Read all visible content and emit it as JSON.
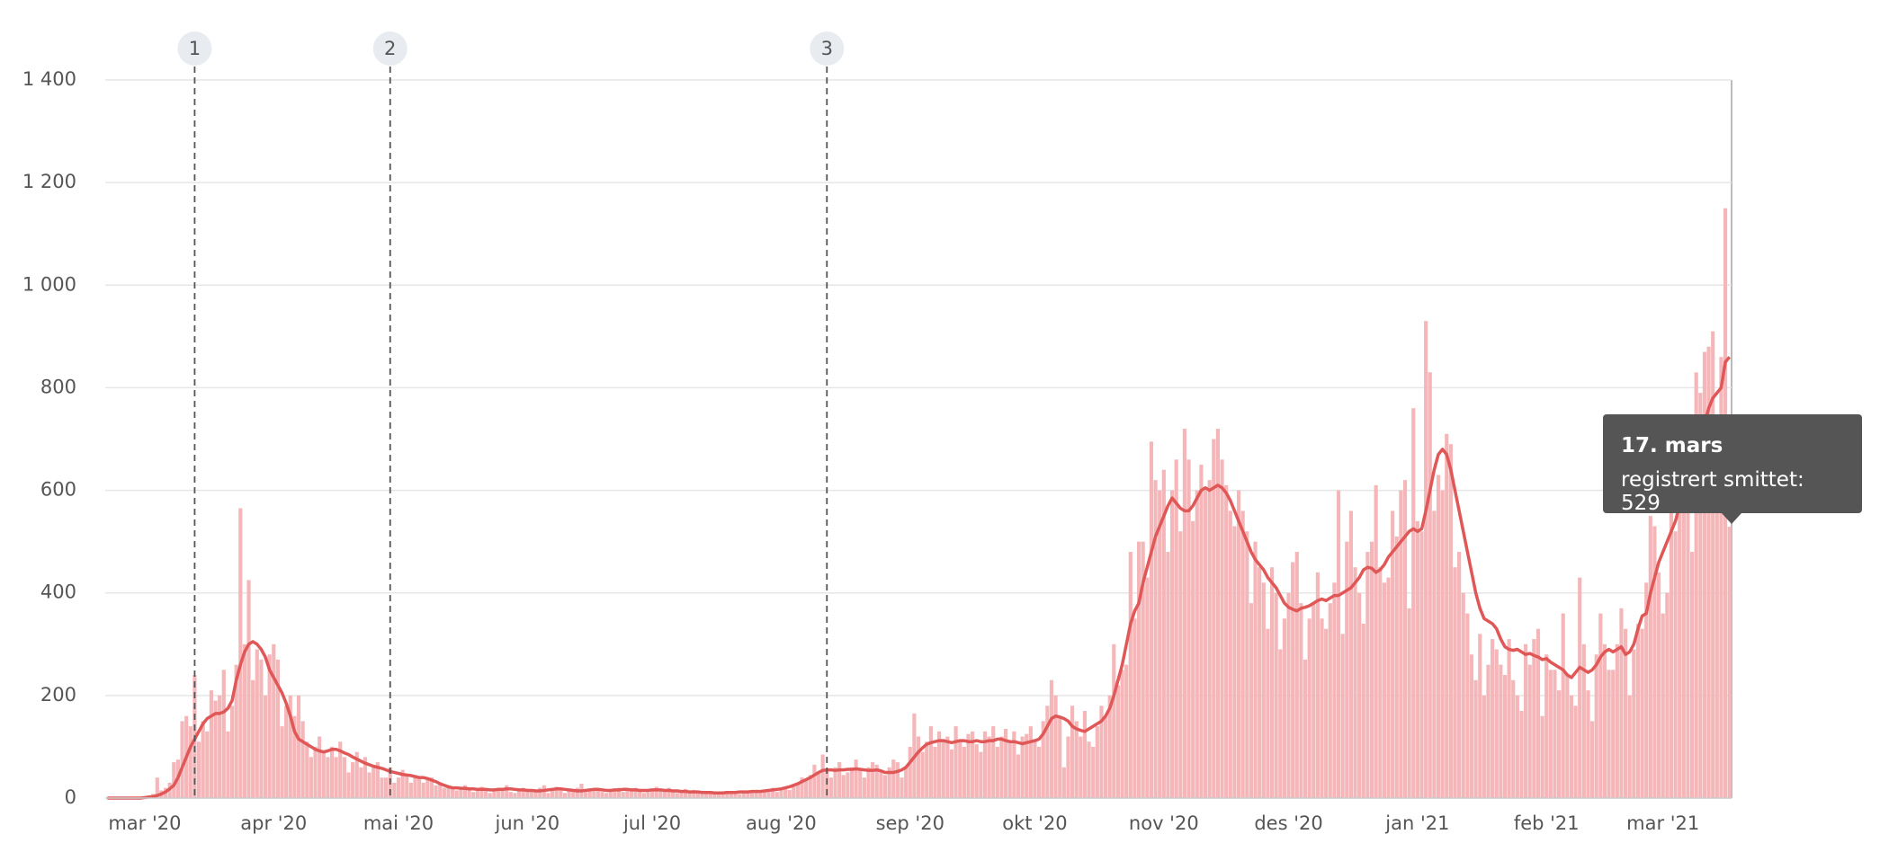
{
  "chart_data": {
    "type": "bar",
    "categories": [
      null,
      null,
      null,
      null,
      null,
      null,
      null,
      null,
      null,
      "mar '20",
      null,
      null,
      null,
      null,
      null,
      null,
      null,
      null,
      null,
      null,
      null,
      null,
      null,
      null,
      null,
      null,
      null,
      null,
      null,
      null,
      null,
      null,
      null,
      null,
      null,
      null,
      null,
      null,
      null,
      null,
      "apr '20",
      null,
      null,
      null,
      null,
      null,
      null,
      null,
      null,
      null,
      null,
      null,
      null,
      null,
      null,
      null,
      null,
      null,
      null,
      null,
      null,
      null,
      null,
      null,
      null,
      null,
      null,
      null,
      null,
      null,
      "mai '20",
      null,
      null,
      null,
      null,
      null,
      null,
      null,
      null,
      null,
      null,
      null,
      null,
      null,
      null,
      null,
      null,
      null,
      null,
      null,
      null,
      null,
      null,
      null,
      null,
      null,
      null,
      null,
      null,
      null,
      null,
      "jun '20",
      null,
      null,
      null,
      null,
      null,
      null,
      null,
      null,
      null,
      null,
      null,
      null,
      null,
      null,
      null,
      null,
      null,
      null,
      null,
      null,
      null,
      null,
      null,
      null,
      null,
      null,
      null,
      null,
      null,
      "jul '20",
      null,
      null,
      null,
      null,
      null,
      null,
      null,
      null,
      null,
      null,
      null,
      null,
      null,
      null,
      null,
      null,
      null,
      null,
      null,
      null,
      null,
      null,
      null,
      null,
      null,
      null,
      null,
      null,
      null,
      null,
      "aug '20",
      null,
      null,
      null,
      null,
      null,
      null,
      null,
      null,
      null,
      null,
      null,
      null,
      null,
      null,
      null,
      null,
      null,
      null,
      null,
      null,
      null,
      null,
      null,
      null,
      null,
      null,
      null,
      null,
      null,
      null,
      "sep '20",
      null,
      null,
      null,
      null,
      null,
      null,
      null,
      null,
      null,
      null,
      null,
      null,
      null,
      null,
      null,
      null,
      null,
      null,
      null,
      null,
      null,
      null,
      null,
      null,
      null,
      null,
      null,
      null,
      null,
      "okt '20",
      null,
      null,
      null,
      null,
      null,
      null,
      null,
      null,
      null,
      null,
      null,
      null,
      null,
      null,
      null,
      null,
      null,
      null,
      null,
      null,
      null,
      null,
      null,
      null,
      null,
      null,
      null,
      null,
      null,
      null,
      "nov '20",
      null,
      null,
      null,
      null,
      null,
      null,
      null,
      null,
      null,
      null,
      null,
      null,
      null,
      null,
      null,
      null,
      null,
      null,
      null,
      null,
      null,
      null,
      null,
      null,
      null,
      null,
      null,
      null,
      null,
      "des '20",
      null,
      null,
      null,
      null,
      null,
      null,
      null,
      null,
      null,
      null,
      null,
      null,
      null,
      null,
      null,
      null,
      null,
      null,
      null,
      null,
      null,
      null,
      null,
      null,
      null,
      null,
      null,
      null,
      null,
      null,
      "jan '21",
      null,
      null,
      null,
      null,
      null,
      null,
      null,
      null,
      null,
      null,
      null,
      null,
      null,
      null,
      null,
      null,
      null,
      null,
      null,
      null,
      null,
      null,
      null,
      null,
      null,
      null,
      null,
      null,
      null,
      null,
      "feb '21",
      null,
      null,
      null,
      null,
      null,
      null,
      null,
      null,
      null,
      null,
      null,
      null,
      null,
      null,
      null,
      null,
      null,
      null,
      null,
      null,
      null,
      null,
      null,
      null,
      null,
      null,
      null,
      "mar '21",
      null,
      null,
      null,
      null,
      null,
      null,
      null,
      null,
      null,
      null,
      null,
      null,
      null,
      null,
      null,
      null
    ],
    "series": [
      {
        "name": "registrert smittet",
        "type": "bar",
        "color": "#f4b6b8",
        "values": [
          0,
          0,
          0,
          0,
          0,
          0,
          0,
          0,
          1,
          2,
          5,
          8,
          40,
          15,
          20,
          30,
          70,
          75,
          150,
          160,
          140,
          240,
          110,
          150,
          130,
          210,
          190,
          200,
          250,
          130,
          180,
          260,
          565,
          300,
          425,
          230,
          290,
          270,
          200,
          280,
          300,
          270,
          140,
          180,
          200,
          160,
          200,
          150,
          110,
          80,
          100,
          120,
          90,
          80,
          100,
          80,
          110,
          80,
          50,
          70,
          90,
          60,
          80,
          50,
          60,
          70,
          40,
          40,
          60,
          30,
          40,
          55,
          45,
          30,
          45,
          40,
          30,
          35,
          40,
          25,
          30,
          20,
          25,
          20,
          15,
          20,
          25,
          18,
          12,
          20,
          22,
          15,
          10,
          18,
          20,
          15,
          25,
          12,
          10,
          15,
          20,
          18,
          12,
          15,
          20,
          25,
          10,
          15,
          22,
          18,
          10,
          14,
          18,
          20,
          28,
          12,
          16,
          15,
          20,
          12,
          10,
          15,
          18,
          20,
          12,
          14,
          18,
          20,
          16,
          10,
          12,
          18,
          22,
          15,
          14,
          20,
          16,
          10,
          12,
          18,
          14,
          16,
          12,
          10,
          12,
          14,
          10,
          8,
          12,
          14,
          10,
          12,
          8,
          10,
          14,
          12,
          16,
          10,
          14,
          18,
          20,
          12,
          18,
          22,
          16,
          25,
          30,
          40,
          35,
          45,
          65,
          50,
          85,
          55,
          40,
          60,
          70,
          45,
          50,
          60,
          75,
          55,
          40,
          60,
          70,
          65,
          50,
          45,
          60,
          75,
          70,
          40,
          60,
          100,
          165,
          120,
          90,
          110,
          140,
          100,
          130,
          115,
          120,
          95,
          140,
          110,
          100,
          125,
          130,
          105,
          90,
          130,
          120,
          140,
          100,
          120,
          135,
          110,
          130,
          85,
          120,
          125,
          140,
          110,
          100,
          150,
          180,
          230,
          200,
          160,
          60,
          120,
          180,
          150,
          120,
          170,
          110,
          100,
          140,
          180,
          160,
          200,
          300,
          220,
          250,
          260,
          480,
          350,
          500,
          500,
          430,
          695,
          620,
          600,
          640,
          480,
          600,
          660,
          520,
          720,
          660,
          540,
          600,
          650,
          600,
          620,
          700,
          720,
          660,
          610,
          560,
          530,
          600,
          560,
          520,
          380,
          500,
          450,
          420,
          330,
          450,
          400,
          290,
          350,
          400,
          460,
          480,
          380,
          270,
          350,
          380,
          440,
          350,
          330,
          380,
          420,
          600,
          320,
          500,
          560,
          450,
          400,
          340,
          480,
          500,
          610,
          450,
          420,
          430,
          560,
          510,
          600,
          620,
          370,
          760,
          540,
          520,
          930,
          830,
          560,
          630,
          600,
          710,
          690,
          450,
          480,
          400,
          360,
          280,
          230,
          320,
          200,
          260,
          310,
          290,
          260,
          240,
          310,
          230,
          200,
          170,
          300,
          260,
          310,
          330,
          160,
          280,
          250,
          250,
          210,
          360,
          240,
          200,
          180,
          430,
          300,
          210,
          150,
          280,
          360,
          300,
          250,
          250,
          300,
          370,
          330,
          200,
          290,
          340,
          330,
          420,
          550,
          530,
          440,
          360,
          400,
          560,
          520,
          620,
          730,
          720,
          480,
          830,
          790,
          870,
          880,
          910,
          700,
          860,
          1150,
          529
        ]
      },
      {
        "type": "line",
        "color": "#e05757",
        "values": [
          0,
          0,
          0,
          0,
          0,
          0,
          0,
          0,
          0,
          1,
          2,
          3,
          5,
          8,
          12,
          18,
          25,
          40,
          60,
          80,
          100,
          115,
          130,
          145,
          155,
          160,
          165,
          165,
          168,
          175,
          190,
          230,
          260,
          285,
          300,
          305,
          300,
          290,
          275,
          250,
          235,
          220,
          205,
          185,
          160,
          130,
          115,
          110,
          105,
          100,
          95,
          92,
          90,
          92,
          95,
          95,
          92,
          88,
          85,
          80,
          76,
          72,
          68,
          65,
          62,
          60,
          58,
          55,
          52,
          50,
          48,
          46,
          45,
          44,
          42,
          40,
          40,
          38,
          35,
          32,
          28,
          25,
          22,
          20,
          20,
          19,
          19,
          18,
          18,
          17,
          17,
          17,
          16,
          16,
          17,
          17,
          18,
          18,
          17,
          16,
          16,
          15,
          15,
          14,
          14,
          15,
          16,
          17,
          18,
          18,
          17,
          16,
          15,
          14,
          14,
          15,
          16,
          17,
          17,
          16,
          15,
          15,
          16,
          16,
          17,
          17,
          16,
          16,
          15,
          15,
          15,
          16,
          16,
          16,
          15,
          15,
          14,
          14,
          13,
          13,
          12,
          12,
          12,
          11,
          11,
          11,
          10,
          10,
          10,
          11,
          11,
          11,
          12,
          12,
          12,
          13,
          13,
          13,
          14,
          15,
          16,
          17,
          18,
          20,
          22,
          25,
          28,
          32,
          36,
          40,
          45,
          50,
          54,
          55,
          55,
          54,
          55,
          55,
          56,
          56,
          57,
          56,
          55,
          54,
          54,
          55,
          53,
          50,
          50,
          50,
          52,
          55,
          60,
          70,
          80,
          90,
          98,
          105,
          108,
          110,
          112,
          112,
          110,
          108,
          110,
          112,
          112,
          110,
          110,
          112,
          110,
          110,
          112,
          112,
          115,
          115,
          112,
          110,
          110,
          108,
          106,
          108,
          110,
          112,
          115,
          125,
          140,
          155,
          160,
          158,
          155,
          150,
          140,
          135,
          132,
          130,
          135,
          140,
          145,
          150,
          160,
          175,
          200,
          230,
          260,
          300,
          340,
          365,
          380,
          420,
          450,
          480,
          510,
          530,
          550,
          570,
          585,
          575,
          565,
          560,
          560,
          570,
          585,
          600,
          605,
          600,
          605,
          610,
          605,
          595,
          580,
          560,
          540,
          520,
          500,
          480,
          465,
          455,
          445,
          430,
          420,
          410,
          395,
          380,
          372,
          368,
          365,
          370,
          372,
          375,
          380,
          385,
          388,
          385,
          390,
          395,
          395,
          400,
          405,
          410,
          420,
          430,
          445,
          450,
          448,
          440,
          445,
          455,
          470,
          480,
          490,
          500,
          510,
          520,
          525,
          520,
          525,
          560,
          600,
          640,
          670,
          680,
          670,
          640,
          600,
          560,
          520,
          480,
          440,
          400,
          370,
          350,
          345,
          340,
          330,
          310,
          295,
          290,
          288,
          290,
          285,
          280,
          282,
          278,
          275,
          270,
          272,
          265,
          260,
          255,
          250,
          240,
          235,
          245,
          255,
          250,
          245,
          250,
          260,
          275,
          285,
          290,
          285,
          290,
          295,
          280,
          285,
          300,
          330,
          355,
          360,
          400,
          430,
          460,
          480,
          500,
          520,
          540,
          570,
          600,
          620,
          650,
          680,
          700,
          730,
          760,
          780,
          790,
          800,
          850,
          860
        ]
      }
    ],
    "ylim": [
      0,
      1400
    ],
    "yticks": [
      0,
      200,
      400,
      600,
      800,
      {
        "value": 1000,
        "label": "1 000"
      },
      {
        "value": 1200,
        "label": "1 200"
      },
      {
        "value": 1400,
        "label": "1 400"
      }
    ],
    "grid": true,
    "annotations": [
      {
        "label": "1",
        "index": 21
      },
      {
        "label": "2",
        "index": 68
      },
      {
        "label": "3",
        "index": 173
      }
    ],
    "tooltip": {
      "title": "17. mars",
      "text": "registrert smittet: 529"
    }
  }
}
